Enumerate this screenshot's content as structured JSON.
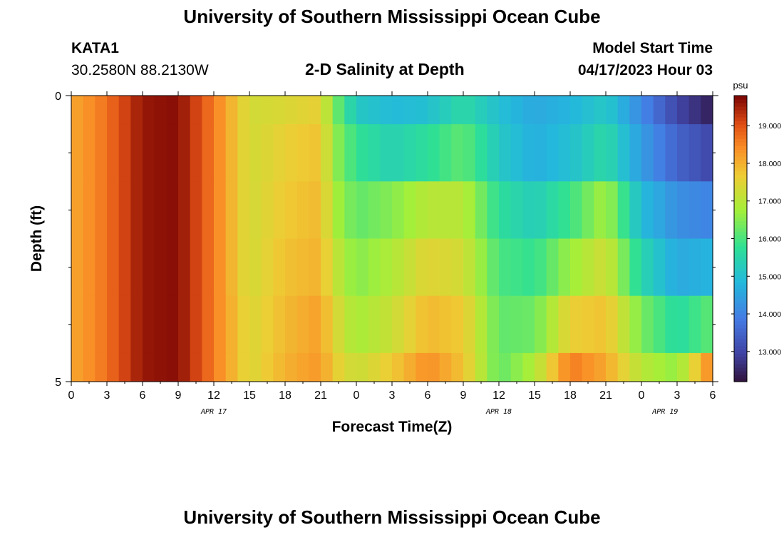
{
  "header": {
    "title": "University of Southern Mississippi Ocean Cube",
    "station": "KATA1",
    "coords": "30.2580N  88.2130W",
    "chart_title": "2-D Salinity at Depth",
    "model_start_label": "Model Start Time",
    "model_start_value": "04/17/2023 Hour 03"
  },
  "footer": {
    "title": "University of Southern Mississippi Ocean Cube"
  },
  "chart_data": {
    "type": "heatmap",
    "title": "2-D Salinity at Depth",
    "xlabel": "Forecast Time(Z)",
    "ylabel": "Depth (ft)",
    "colorbar_label": "psu",
    "xlim": [
      0,
      54
    ],
    "ylim": [
      0,
      5
    ],
    "y_inverted": true,
    "x_tick_labels": [
      "0",
      "3",
      "6",
      "9",
      "12",
      "15",
      "18",
      "21",
      "0",
      "3",
      "6",
      "9",
      "12",
      "15",
      "18",
      "21",
      "0",
      "3",
      "6"
    ],
    "y_tick_labels": [
      "0",
      "5"
    ],
    "date_labels": [
      {
        "text": "APR 17",
        "hour": 12
      },
      {
        "text": "APR 18",
        "hour": 36
      },
      {
        "text": "APR 19",
        "hour": 50
      }
    ],
    "colorbar_ticks": [
      "19.000",
      "18.000",
      "17.000",
      "16.000",
      "15.000",
      "14.000",
      "13.000"
    ],
    "colorbar_range": [
      12.2,
      19.8
    ],
    "depth_layers": [
      "0-0.5",
      "0.5-1.5",
      "1.5-2.5",
      "2.5-3.5",
      "3.5-4.5",
      "4.5-5"
    ],
    "time_knots_hours": [
      0,
      3,
      6,
      9,
      12,
      15,
      18,
      21,
      22,
      24,
      27,
      30,
      33,
      36,
      39,
      42,
      45,
      48,
      51,
      54
    ],
    "salinity_grid": [
      [
        18.1,
        18.7,
        19.6,
        19.7,
        18.6,
        17.3,
        17.4,
        17.6,
        16.5,
        15.2,
        14.9,
        15.0,
        15.6,
        15.0,
        14.6,
        14.8,
        15.2,
        14.1,
        13.0,
        12.4
      ],
      [
        18.1,
        18.7,
        19.6,
        19.7,
        18.6,
        17.3,
        17.6,
        17.8,
        16.7,
        15.8,
        15.4,
        15.7,
        16.2,
        15.2,
        14.7,
        15.0,
        15.6,
        14.4,
        13.5,
        13.0
      ],
      [
        18.1,
        18.7,
        19.6,
        19.7,
        18.6,
        17.3,
        17.7,
        17.9,
        16.9,
        16.2,
        16.5,
        17.0,
        17.0,
        15.7,
        15.3,
        15.9,
        16.8,
        14.9,
        14.2,
        14.0
      ],
      [
        18.1,
        18.7,
        19.6,
        19.7,
        18.6,
        17.3,
        17.8,
        18.0,
        17.2,
        16.5,
        16.9,
        17.5,
        17.3,
        16.0,
        15.8,
        16.7,
        17.3,
        15.5,
        14.6,
        14.8
      ],
      [
        18.1,
        18.7,
        19.6,
        19.7,
        18.6,
        17.4,
        17.9,
        18.2,
        17.5,
        16.8,
        17.2,
        17.9,
        17.7,
        16.2,
        16.3,
        17.6,
        17.8,
        16.4,
        15.6,
        16.2
      ],
      [
        18.1,
        18.7,
        19.6,
        19.7,
        18.6,
        17.4,
        18.0,
        18.3,
        17.7,
        17.2,
        17.7,
        18.4,
        17.8,
        16.2,
        16.9,
        18.6,
        18.1,
        17.0,
        16.6,
        18.6
      ]
    ]
  }
}
